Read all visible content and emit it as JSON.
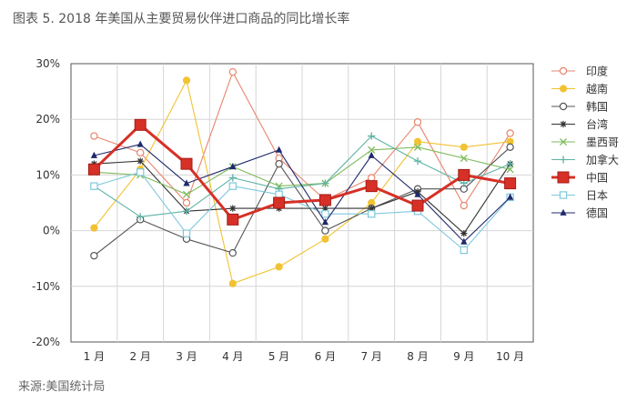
{
  "figure": {
    "title": "图表 5. 2018 年美国从主要贸易伙伴进口商品的同比增长率",
    "source": "来源:美国统计局"
  },
  "colors": {
    "印度": "#e8846c",
    "越南": "#f2c232",
    "韩国": "#555555",
    "台湾": "#333333",
    "墨西哥": "#7dbb5c",
    "加拿大": "#5fb3a5",
    "中国": "#d63027",
    "日本": "#7fc8dc",
    "德国": "#1f2a6b"
  },
  "chart_data": {
    "type": "line",
    "categories": [
      "1 月",
      "2 月",
      "3 月",
      "4 月",
      "5 月",
      "6 月",
      "7 月",
      "8 月",
      "9 月",
      "10 月"
    ],
    "ylim": [
      -20,
      30
    ],
    "yticks": [
      -20,
      -10,
      0,
      10,
      20,
      30
    ],
    "ytick_labels": [
      "-20%",
      "-10%",
      "0%",
      "10%",
      "20%",
      "30%"
    ],
    "grid": true,
    "legend_position": "right",
    "series": [
      {
        "name": "印度",
        "marker": "open-circle",
        "values": [
          17,
          14,
          5,
          28.5,
          13,
          5.5,
          9.5,
          19.5,
          4.5,
          17.5
        ]
      },
      {
        "name": "越南",
        "marker": "filled-circle",
        "values": [
          0.5,
          11,
          27,
          -9.5,
          -6.5,
          -1.5,
          5,
          16,
          15,
          16
        ]
      },
      {
        "name": "韩国",
        "marker": "open-circle",
        "values": [
          -4.5,
          2,
          -1.5,
          -4,
          12,
          0,
          4,
          7.5,
          7.5,
          15
        ]
      },
      {
        "name": "台湾",
        "marker": "star",
        "values": [
          12,
          12.5,
          3.5,
          4,
          4,
          4,
          4,
          7,
          -0.5,
          12
        ]
      },
      {
        "name": "墨西哥",
        "marker": "x",
        "values": [
          10.5,
          10,
          6.5,
          11.5,
          8,
          8.5,
          14.5,
          15,
          13,
          11
        ]
      },
      {
        "name": "加拿大",
        "marker": "plus",
        "values": [
          8,
          2.5,
          3.5,
          9.5,
          7.5,
          8.5,
          17,
          12.5,
          8.5,
          12
        ]
      },
      {
        "name": "中国",
        "marker": "filled-square",
        "values": [
          11,
          19,
          12,
          2,
          5,
          5.5,
          8,
          4.5,
          10,
          8.5
        ]
      },
      {
        "name": "日本",
        "marker": "open-square",
        "values": [
          8,
          10.5,
          -0.5,
          8,
          6.5,
          3,
          3,
          3.5,
          -3.5,
          6
        ]
      },
      {
        "name": "德国",
        "marker": "filled-triangle",
        "values": [
          13.5,
          15.5,
          8.5,
          11.5,
          14.5,
          1.5,
          13.5,
          6.5,
          -2,
          6
        ]
      }
    ]
  }
}
